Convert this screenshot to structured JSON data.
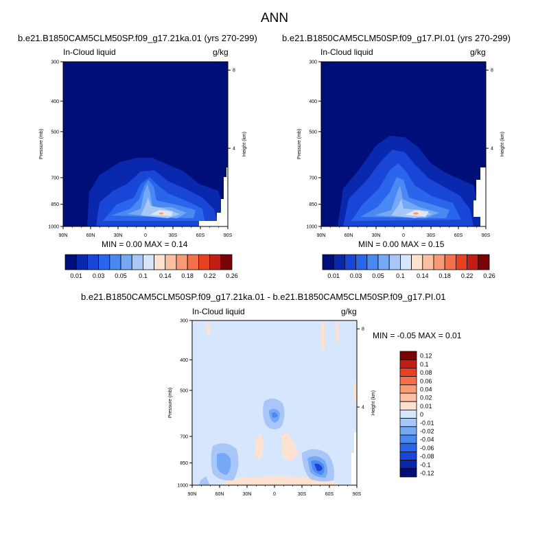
{
  "figure": {
    "title": "ANN",
    "colors": {
      "levels": [
        "#000e79",
        "#0a28ad",
        "#1a46d8",
        "#2a66ec",
        "#4a88f2",
        "#75a8f5",
        "#a8c6f8",
        "#d6e6fc",
        "#fde2d2",
        "#fcbfa2",
        "#f89a75",
        "#f5714b",
        "#e64222",
        "#c31e14",
        "#7a0405"
      ],
      "diff_levels": [
        "#000e79",
        "#0a28ad",
        "#1a46d8",
        "#2a66ec",
        "#4a88f2",
        "#75a8f5",
        "#a8c6f8",
        "#d6e6fc",
        "#fde2d2",
        "#fcbfa2",
        "#f89a75",
        "#f5714b",
        "#e64222",
        "#c31e14",
        "#7a0405"
      ]
    }
  },
  "panels": [
    {
      "case_title": "b.e21.B1850CAM5CLM50SP.f09_g17.21ka.01 (yrs 270-299)",
      "left_label": "In-Cloud liquid",
      "right_label": "g/kg",
      "minmax": "MIN =   0.00  MAX =   0.14"
    },
    {
      "case_title": "b.e21.B1850CAM5CLM50SP.f09_g17.PI.01 (yrs 270-299)",
      "left_label": "In-Cloud liquid",
      "right_label": "g/kg",
      "minmax": "MIN =   0.00  MAX =   0.15"
    },
    {
      "case_title": "b.e21.B1850CAM5CLM50SP.f09_g17.21ka.01 - b.e21.B1850CAM5CLM50SP.f09_g17.PI.01",
      "left_label": "In-Cloud liquid",
      "right_label": "g/kg",
      "minmax": "MIN =  -0.05  MAX =   0.01"
    }
  ],
  "chart_data": [
    {
      "type": "heatmap",
      "title": "In-Cloud liquid",
      "units": "g/kg",
      "ylabel": "Pressure (mb)",
      "y2label": "Height (km)",
      "x_ticks": [
        "90N",
        "60N",
        "30N",
        "0",
        "30S",
        "60S",
        "90S"
      ],
      "y_ticks": [
        "300",
        "400",
        "500",
        "700",
        "850",
        "1000"
      ],
      "y2_ticks": [
        "8",
        "4"
      ],
      "colorbar_labels": [
        "0.01",
        "0.03",
        "0.05",
        "0.1",
        "0.14",
        "0.18",
        "0.22",
        "0.26"
      ],
      "min": 0.0,
      "max": 0.14
    },
    {
      "type": "heatmap",
      "title": "In-Cloud liquid",
      "units": "g/kg",
      "ylabel": "Pressure (mb)",
      "y2label": "Height (km)",
      "x_ticks": [
        "90N",
        "60N",
        "30N",
        "0",
        "30S",
        "60S",
        "90S"
      ],
      "y_ticks": [
        "300",
        "400",
        "500",
        "700",
        "850",
        "1000"
      ],
      "y2_ticks": [
        "8",
        "4"
      ],
      "colorbar_labels": [
        "0.01",
        "0.03",
        "0.05",
        "0.1",
        "0.14",
        "0.18",
        "0.22",
        "0.26"
      ],
      "min": 0.0,
      "max": 0.15
    },
    {
      "type": "heatmap",
      "title": "In-Cloud liquid",
      "units": "g/kg",
      "ylabel": "Pressure (mb)",
      "y2label": "Height (km)",
      "x_ticks": [
        "90N",
        "60N",
        "30N",
        "0",
        "30S",
        "60S",
        "90S"
      ],
      "y_ticks": [
        "300",
        "400",
        "500",
        "700",
        "850",
        "1000"
      ],
      "y2_ticks": [
        "8",
        "4"
      ],
      "colorbar_labels": [
        "0.12",
        "0.1",
        "0.08",
        "0.06",
        "0.04",
        "0.02",
        "0.01",
        "0",
        "-0.01",
        "-0.02",
        "-0.04",
        "-0.06",
        "-0.08",
        "-0.1",
        "-0.12"
      ],
      "min": -0.05,
      "max": 0.01
    }
  ]
}
